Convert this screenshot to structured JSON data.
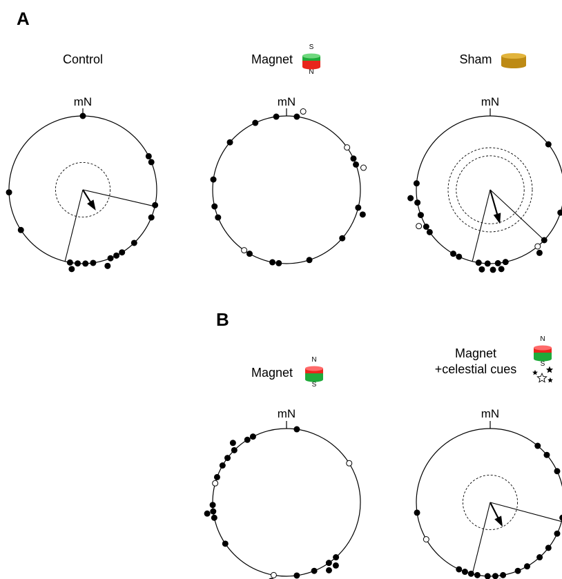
{
  "panels": {
    "A": {
      "letter": "A"
    },
    "B": {
      "letter": "B"
    }
  },
  "north_label": "mN",
  "plots": [
    {
      "id": "control",
      "panel": "A",
      "label": "Control",
      "label2": "",
      "icon": "none",
      "filled": [
        0,
        63,
        68,
        102,
        112,
        136,
        148,
        153,
        158,
        162,
        172,
        178,
        184,
        188,
        190,
        237,
        268
      ],
      "open": [],
      "arrow": {
        "angle": 148,
        "r": 0.33
      },
      "ci": [
        103,
        194
      ],
      "critical_r": [
        0.37
      ]
    },
    {
      "id": "magnet-a",
      "panel": "A",
      "label": "Magnet",
      "label2": "",
      "icon": "magnet-s-top",
      "magnet_top": "S",
      "magnet_bottom": "N",
      "filled": [
        8,
        65,
        70,
        104,
        108,
        131,
        162,
        186,
        191,
        210,
        248,
        257,
        278,
        310,
        335,
        352
      ],
      "open": [
        12,
        55,
        74,
        215
      ],
      "arrow": null,
      "ci": null,
      "critical_r": []
    },
    {
      "id": "sham",
      "panel": "A",
      "label": "Sham",
      "label2": "",
      "icon": "cylinder",
      "filled": [
        52,
        108,
        133,
        142,
        168,
        172,
        174,
        178,
        182,
        186,
        189,
        205,
        210,
        235,
        240,
        250,
        260,
        264,
        275
      ],
      "open": [
        140,
        243
      ],
      "arrow": {
        "angle": 164,
        "r": 0.48
      },
      "ci": [
        133,
        194
      ],
      "critical_r": [
        0.46,
        0.57
      ]
    },
    {
      "id": "magnet-b",
      "panel": "B",
      "label": "Magnet",
      "label2": "",
      "icon": "magnet-n-top",
      "magnet_top": "N",
      "magnet_bottom": "S",
      "filled": [
        8,
        138,
        142,
        145,
        148,
        158,
        172,
        191,
        236,
        258,
        262,
        263,
        268,
        290,
        300,
        307,
        315,
        318,
        328,
        333
      ],
      "open": [
        58,
        190,
        285
      ],
      "arrow": null,
      "ci": null,
      "critical_r": []
    },
    {
      "id": "magnet-celestial",
      "panel": "B",
      "label": "Magnet",
      "label2": "+celestial cues",
      "icon": "magnet-stars",
      "magnet_top": "N",
      "magnet_bottom": "S",
      "filled": [
        40,
        50,
        65,
        102,
        115,
        128,
        138,
        150,
        158,
        170,
        173,
        176,
        179,
        182,
        186,
        190,
        195,
        200,
        205,
        262
      ],
      "open": [
        240
      ],
      "arrow": {
        "angle": 153,
        "r": 0.37
      },
      "ci": [
        105,
        194
      ],
      "critical_r": [
        0.37
      ]
    }
  ],
  "colors": {
    "dot": "#000000",
    "circle": "#000000",
    "magnet_red": "#e8261c",
    "magnet_red_light": "#ff6a6a",
    "magnet_green": "#1faa3a",
    "magnet_green_light": "#6fd87e",
    "cylinder_top": "#e2b43c",
    "cylinder_side": "#bd8a14"
  }
}
